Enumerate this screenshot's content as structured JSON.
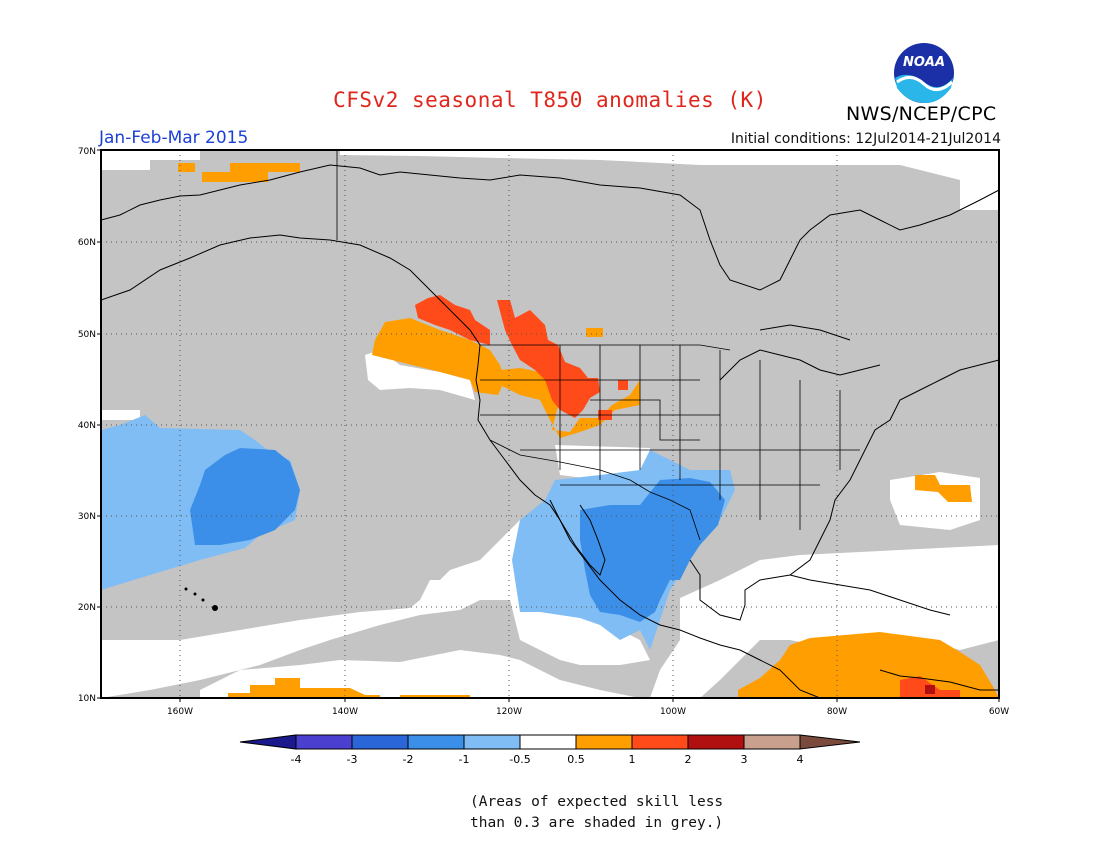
{
  "title": "CFSv2 seasonal T850 anomalies (K)",
  "org": "NWS/NCEP/CPC",
  "logo_text": "NOAA",
  "period": "Jan-Feb-Mar 2015",
  "initial_conditions": "Initial conditions: 12Jul2014-21Jul2014",
  "lat_labels": [
    "70N",
    "60N",
    "50N",
    "40N",
    "30N",
    "20N",
    "10N"
  ],
  "lon_labels": [
    "160W",
    "140W",
    "120W",
    "100W",
    "80W",
    "60W"
  ],
  "colorbar": {
    "colors": [
      "#1a1a8c",
      "#4b3fd0",
      "#2a66d8",
      "#3c8fe8",
      "#80bdf5",
      "#ffffff",
      "#ff9e00",
      "#ff4a1a",
      "#b01010",
      "#c9a08e",
      "#7a4a3c"
    ],
    "labels": [
      "-4",
      "-3",
      "-2",
      "-1",
      "-0.5",
      "0.5",
      "1",
      "2",
      "3",
      "4"
    ]
  },
  "note": [
    "(Areas of expected skill less",
    "than 0.3 are shaded in grey.)"
  ],
  "colors": {
    "grey": "#c4c4c4",
    "light_blue": "#80bdf5",
    "blue": "#3c8fe8",
    "orange": "#ff9e00",
    "red": "#ff4a1a",
    "dark_red": "#b01010",
    "title_red": "#e0261c",
    "period_blue": "#1c3fd6"
  }
}
